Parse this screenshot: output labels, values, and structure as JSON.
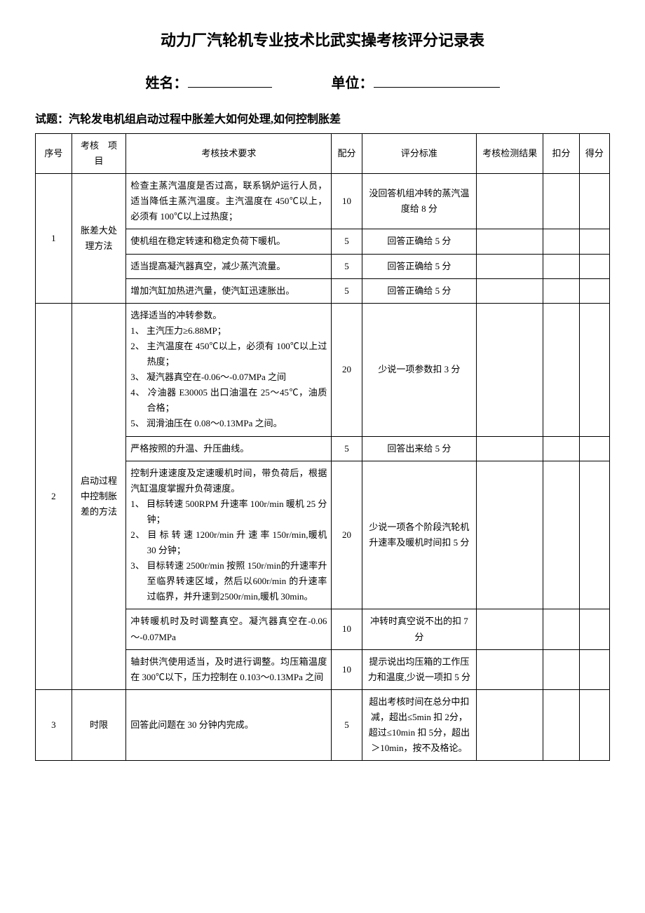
{
  "title": "动力厂汽轮机专业技术比武实操考核评分记录表",
  "info": {
    "name_label": "姓名：",
    "unit_label": "单位："
  },
  "question_prefix": "试题：",
  "question_text": "汽轮发电机组启动过程中胀差大如何处理,如何控制胀差",
  "headers": {
    "seq": "序号",
    "item": "考核　项目",
    "req": "考核技术要求",
    "score": "配分",
    "std": "评分标准",
    "result": "考核检测结果",
    "deduct": "扣分",
    "final": "得分"
  },
  "rows": [
    {
      "seq": "1",
      "item": "胀差大处理方法",
      "sub": [
        {
          "req": "检查主蒸汽温度是否过高，联系锅炉运行人员，适当降低主蒸汽温度。主汽温度在 450℃以上，必须有 100℃以上过热度；",
          "score": "10",
          "std": "没回答机组冲转的蒸汽温度给 8 分"
        },
        {
          "req": "使机组在稳定转速和稳定负荷下暖机。",
          "score": "5",
          "std": "回答正确给 5 分"
        },
        {
          "req": "适当提高凝汽器真空，减少蒸汽流量。",
          "score": "5",
          "std": "回答正确给 5 分"
        },
        {
          "req": "增加汽缸加热进汽量，使汽缸迅速胀出。",
          "score": "5",
          "std": "回答正确给 5 分"
        }
      ]
    },
    {
      "seq": "2",
      "item": "启动过程中控制胀差的方法",
      "sub": [
        {
          "req_lead": "选择适当的冲转参数。",
          "req_list": [
            "1、 主汽压力≥6.88MP；",
            "2、 主汽温度在 450℃以上，必须有 100℃以上过热度；",
            "3、 凝汽器真空在-0.06～-0.07MPa 之间",
            "4、 冷油器 E30005 出口油温在 25～45℃，油质合格；",
            "5、 润滑油压在 0.08～0.13MPa 之间。"
          ],
          "score": "20",
          "std": "少说一项参数扣 3 分"
        },
        {
          "req": "严格按照的升温、升压曲线。",
          "score": "5",
          "std": "回答出来给 5 分"
        },
        {
          "req_lead": "控制升速速度及定速暖机时间，带负荷后，根据汽缸温度掌握升负荷速度。",
          "req_list": [
            "1、 目标转速 500RPM 升速率 100r/min 暖机 25 分钟；",
            "2、 目 标 转 速 1200r/min 升 速 率 150r/min,暖机 30 分钟；",
            "3、 目标转速 2500r/min 按照 150r/min的升速率升至临界转速区域，然后以600r/min 的升速率过临界，并升速到2500r/min,暖机 30min。"
          ],
          "score": "20",
          "std": "少说一项各个阶段汽轮机升速率及暖机时间扣 5 分"
        },
        {
          "req": "冲转暖机时及时调整真空。凝汽器真空在-0.06～-0.07MPa",
          "score": "10",
          "std": "冲转时真空说不出的扣 7 分"
        },
        {
          "req": "轴封供汽使用适当，及时进行调整。均压箱温度在 300℃以下，压力控制在 0.103～0.13MPa 之间",
          "score": "10",
          "std": "提示说出均压箱的工作压力和温度,少说一项扣 5 分"
        }
      ]
    },
    {
      "seq": "3",
      "item": "时限",
      "sub": [
        {
          "req": "回答此问题在 30 分钟内完成。",
          "score": "5",
          "std": "超出考核时间在总分中扣减，超出≤5min 扣 2分，超过≤10min 扣 5分，超出＞10min，按不及格论。"
        }
      ]
    }
  ]
}
